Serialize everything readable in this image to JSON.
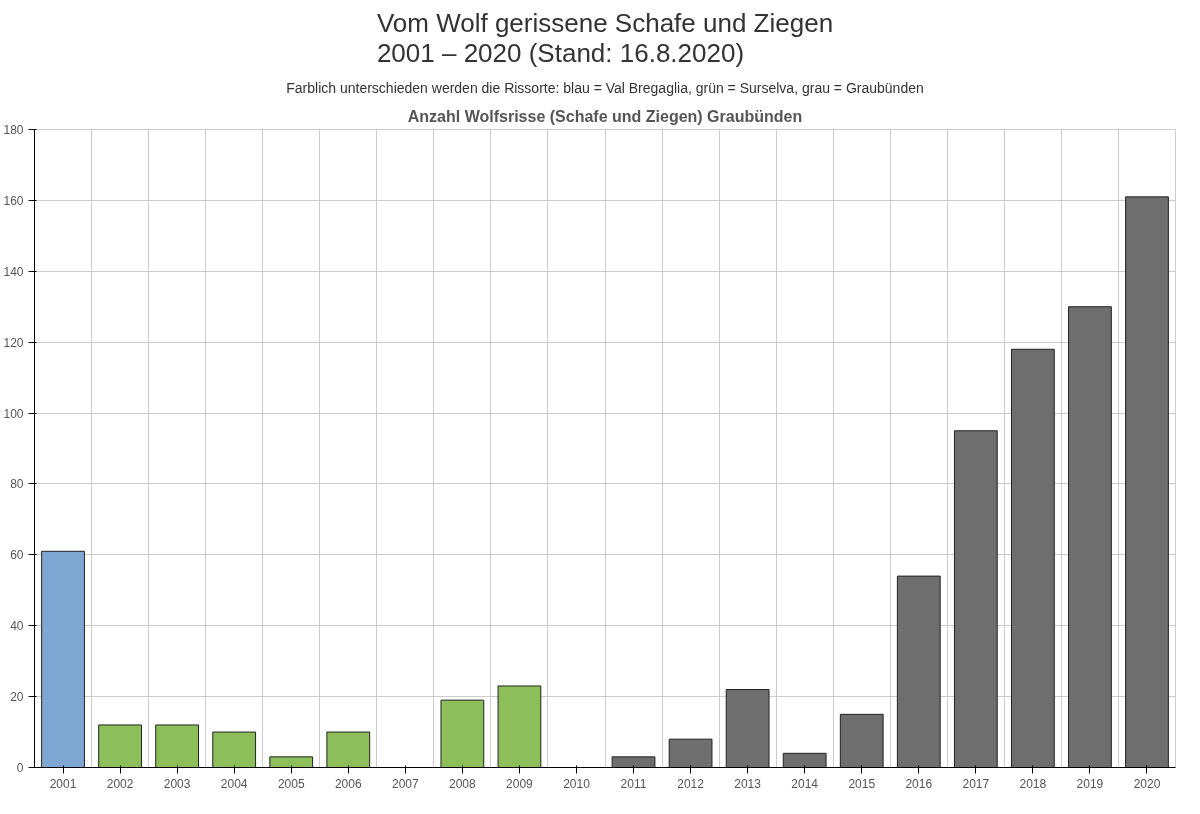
{
  "chart_data": {
    "type": "bar",
    "title": "Vom Wolf gerissene Schafe und Ziegen\n2001 – 2020 (Stand: 16.8.2020)",
    "subtitle": "Farblich unterschieden werden die Rissorte: blau = Val Bregaglia, grün = Surselva, grau = Graubünden",
    "annotations": [
      "Anzahl Wolfsrisse (Schafe und Ziegen) Graubünden"
    ],
    "categories": [
      "2001",
      "2002",
      "2003",
      "2004",
      "2005",
      "2006",
      "2007",
      "2008",
      "2009",
      "2010",
      "2011",
      "2012",
      "2013",
      "2014",
      "2015",
      "2016",
      "2017",
      "2018",
      "2019",
      "2020"
    ],
    "values": [
      61,
      12,
      12,
      10,
      3,
      10,
      null,
      19,
      23,
      null,
      3,
      8,
      22,
      4,
      15,
      54,
      95,
      118,
      130,
      161
    ],
    "colors": [
      "#7fa7d4",
      "#8cbf5a",
      "#8cbf5a",
      "#8cbf5a",
      "#8cbf5a",
      "#8cbf5a",
      null,
      "#8cbf5a",
      "#8cbf5a",
      null,
      "#6e6e6e",
      "#6e6e6e",
      "#6e6e6e",
      "#6e6e6e",
      "#6e6e6e",
      "#6e6e6e",
      "#6e6e6e",
      "#6e6e6e",
      "#6e6e6e",
      "#6e6e6e"
    ],
    "ylim": [
      0,
      180
    ],
    "yticks": [
      0,
      20,
      40,
      60,
      80,
      100,
      120,
      140,
      160,
      180
    ],
    "grid": true
  }
}
